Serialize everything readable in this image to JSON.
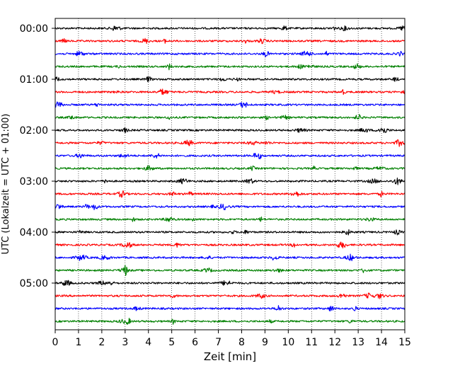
{
  "chart_data": {
    "type": "line",
    "title": "",
    "xlabel": "Zeit  [min]",
    "ylabel": "UTC (Lokalzeit = UTC + 01:00)",
    "xlim": [
      0,
      15
    ],
    "x_ticks": [
      0,
      1,
      2,
      3,
      4,
      5,
      6,
      7,
      8,
      9,
      10,
      11,
      12,
      13,
      14,
      15
    ],
    "y_tick_labels": [
      "00:00",
      "01:00",
      "02:00",
      "03:00",
      "04:00",
      "05:00"
    ],
    "trace_interval_min": 15,
    "traces_per_hour": 4,
    "trace_count": 24,
    "color_cycle": [
      "#000000",
      "#ff0000",
      "#0000ff",
      "#008000"
    ],
    "grid": "vertical dotted lines at each minute",
    "legend": "none"
  }
}
